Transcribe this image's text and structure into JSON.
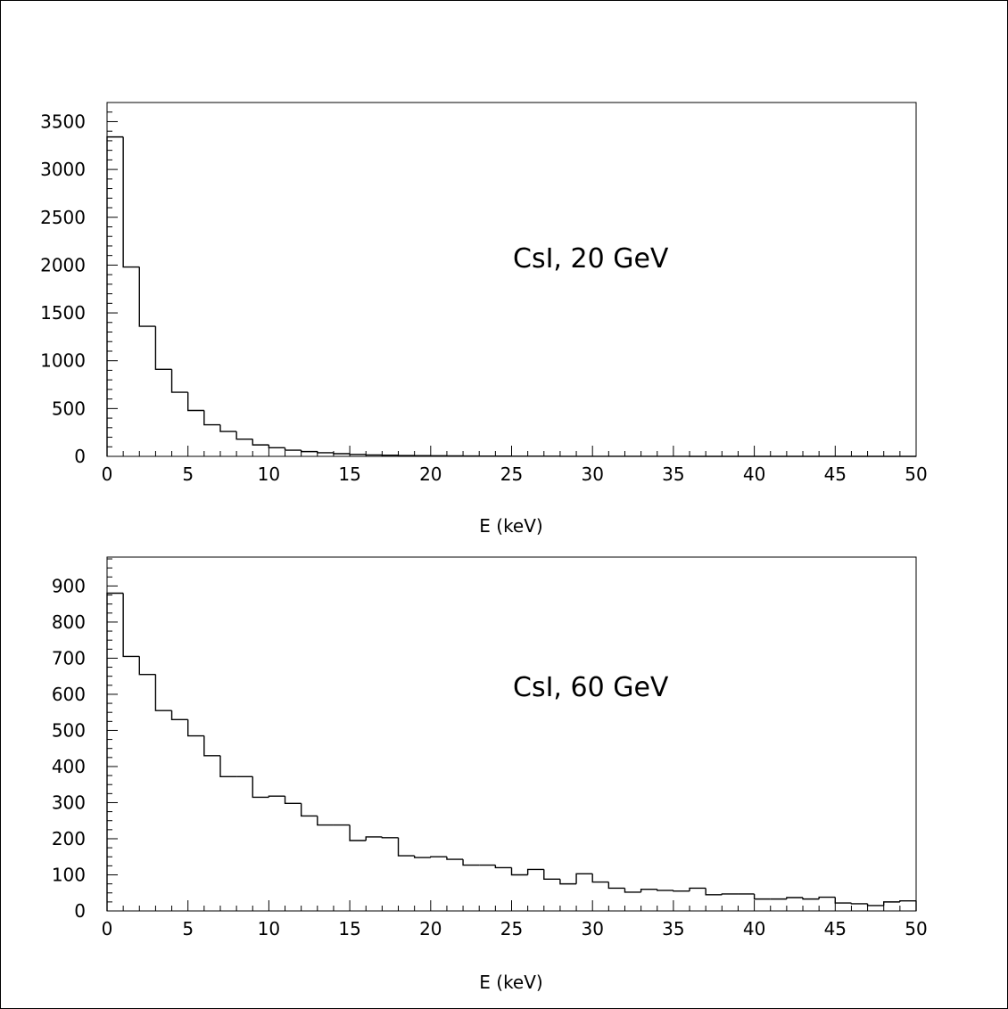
{
  "chart_data": [
    {
      "type": "bar",
      "style": "step-histogram",
      "title": "",
      "annotation": "CsI, 20 GeV",
      "xlabel": "E (keV)",
      "ylabel": "",
      "xlim": [
        0,
        50
      ],
      "ylim": [
        0,
        3700
      ],
      "xticks": [
        0,
        5,
        10,
        15,
        20,
        25,
        30,
        35,
        40,
        45,
        50
      ],
      "xtick_labels": [
        "0",
        "5",
        "10",
        "15",
        "20",
        "25",
        "30",
        "35",
        "40",
        "45",
        "50"
      ],
      "yticks": [
        0,
        500,
        1000,
        1500,
        2000,
        2500,
        3000,
        3500
      ],
      "ytick_labels": [
        "0",
        "500",
        "1000",
        "1500",
        "2000",
        "2500",
        "3000",
        "3500"
      ],
      "grid": false,
      "bin_width": 1,
      "x": [
        0,
        1,
        2,
        3,
        4,
        5,
        6,
        7,
        8,
        9,
        10,
        11,
        12,
        13,
        14,
        15,
        16,
        17,
        18,
        19,
        20,
        21,
        22,
        23,
        24,
        25,
        26,
        27,
        28,
        29,
        30,
        31,
        32,
        33,
        34,
        35,
        36,
        37,
        38,
        39,
        40,
        41,
        42,
        43,
        44,
        45,
        46,
        47,
        48,
        49
      ],
      "values": [
        3340,
        1980,
        1360,
        910,
        670,
        480,
        330,
        260,
        180,
        120,
        90,
        65,
        50,
        38,
        28,
        20,
        15,
        12,
        9,
        7,
        6,
        5,
        4,
        3,
        3,
        2,
        2,
        2,
        1,
        1,
        1,
        1,
        1,
        1,
        1,
        1,
        0,
        0,
        0,
        0,
        0,
        0,
        0,
        0,
        0,
        0,
        0,
        0,
        0,
        0
      ]
    },
    {
      "type": "bar",
      "style": "step-histogram",
      "title": "",
      "annotation": "CsI, 60 GeV",
      "xlabel": "E (keV)",
      "ylabel": "",
      "xlim": [
        0,
        50
      ],
      "ylim": [
        0,
        980
      ],
      "xticks": [
        0,
        5,
        10,
        15,
        20,
        25,
        30,
        35,
        40,
        45,
        50
      ],
      "xtick_labels": [
        "0",
        "5",
        "10",
        "15",
        "20",
        "25",
        "30",
        "35",
        "40",
        "45",
        "50"
      ],
      "yticks": [
        0,
        100,
        200,
        300,
        400,
        500,
        600,
        700,
        800,
        900
      ],
      "ytick_labels": [
        "0",
        "100",
        "200",
        "300",
        "400",
        "500",
        "600",
        "700",
        "800",
        "900"
      ],
      "grid": false,
      "bin_width": 1,
      "x": [
        0,
        1,
        2,
        3,
        4,
        5,
        6,
        7,
        8,
        9,
        10,
        11,
        12,
        13,
        14,
        15,
        16,
        17,
        18,
        19,
        20,
        21,
        22,
        23,
        24,
        25,
        26,
        27,
        28,
        29,
        30,
        31,
        32,
        33,
        34,
        35,
        36,
        37,
        38,
        39,
        40,
        41,
        42,
        43,
        44,
        45,
        46,
        47,
        48,
        49
      ],
      "values": [
        880,
        705,
        655,
        555,
        530,
        485,
        430,
        372,
        372,
        315,
        318,
        298,
        263,
        238,
        238,
        195,
        205,
        203,
        153,
        148,
        150,
        143,
        127,
        127,
        120,
        100,
        115,
        88,
        75,
        103,
        80,
        63,
        52,
        60,
        57,
        55,
        63,
        45,
        47,
        47,
        33,
        33,
        37,
        33,
        38,
        22,
        20,
        15,
        25,
        28
      ]
    }
  ]
}
